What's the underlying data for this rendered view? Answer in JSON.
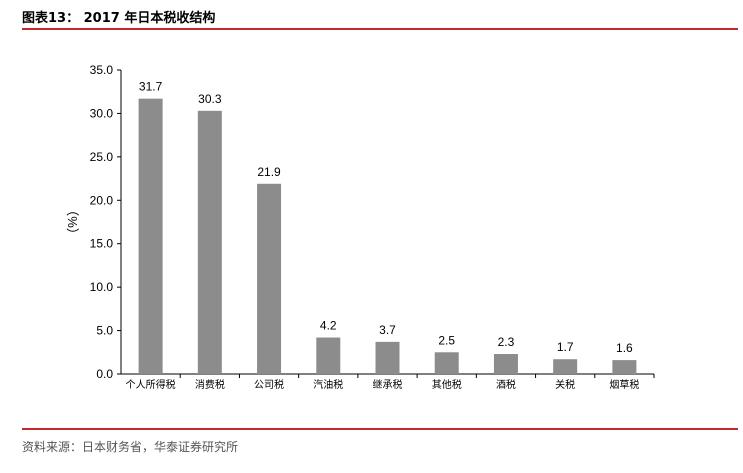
{
  "figure": {
    "title": "图表13：  2017 年日本税收结构",
    "source": "资料来源：日本财务省，华泰证券研究所"
  },
  "colors": {
    "bar": "#8c8c8c",
    "accent_rule": "#c0282b",
    "axis": "#000000"
  },
  "chart_data": {
    "type": "bar",
    "categories": [
      "个人所得税",
      "消费税",
      "公司税",
      "汽油税",
      "继承税",
      "其他税",
      "酒税",
      "关税",
      "烟草税"
    ],
    "values": [
      31.7,
      30.3,
      21.9,
      4.2,
      3.7,
      2.5,
      2.3,
      1.7,
      1.6
    ],
    "value_labels": [
      "31.7",
      "30.3",
      "21.9",
      "4.2",
      "3.7",
      "2.5",
      "2.3",
      "1.7",
      "1.6"
    ],
    "ylabel": "（%）",
    "ylim": [
      0,
      35
    ],
    "yticks": [
      "0.0",
      "5.0",
      "10.0",
      "15.0",
      "20.0",
      "25.0",
      "30.0",
      "35.0"
    ],
    "grid": false,
    "legend": "none"
  }
}
